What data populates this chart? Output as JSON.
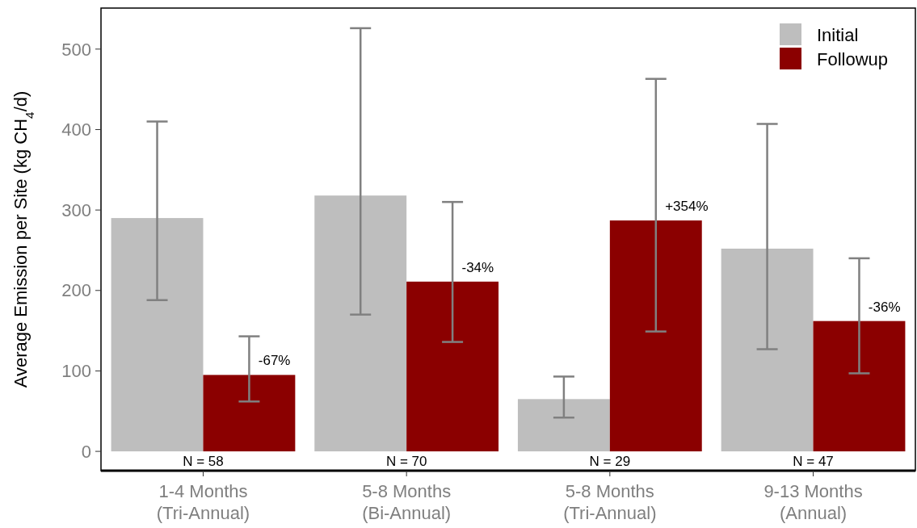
{
  "chart_data": {
    "type": "bar",
    "ylabel": "Average Emission per Site (kg CH$_{4}$/d)",
    "categories": [
      "1-4 Months\n(Tri-Annual)",
      "5-8 Months\n(Bi-Annual)",
      "5-8 Months\n(Tri-Annual)",
      "9-13 Months\n(Annual)"
    ],
    "series": [
      {
        "name": "Initial",
        "color": "#bebebe",
        "values": [
          290,
          318,
          65,
          252
        ],
        "errors": [
          [
            188,
            410
          ],
          [
            170,
            526
          ],
          [
            42,
            93
          ],
          [
            127,
            407
          ]
        ]
      },
      {
        "name": "Followup",
        "color": "#8b0000",
        "values": [
          95,
          211,
          287,
          162
        ],
        "errors": [
          [
            62,
            143
          ],
          [
            136,
            310
          ],
          [
            149,
            463
          ],
          [
            97,
            240
          ]
        ]
      }
    ],
    "ylim": [
      -24,
      551
    ],
    "yticks": [
      0,
      100,
      200,
      300,
      400,
      500
    ],
    "grid": false,
    "legend": "top right",
    "annotations": [
      "-67%",
      "-34%",
      "+354%",
      "-36%",
      "N = 58",
      "N = 70",
      "N = 29",
      "N = 47"
    ]
  }
}
